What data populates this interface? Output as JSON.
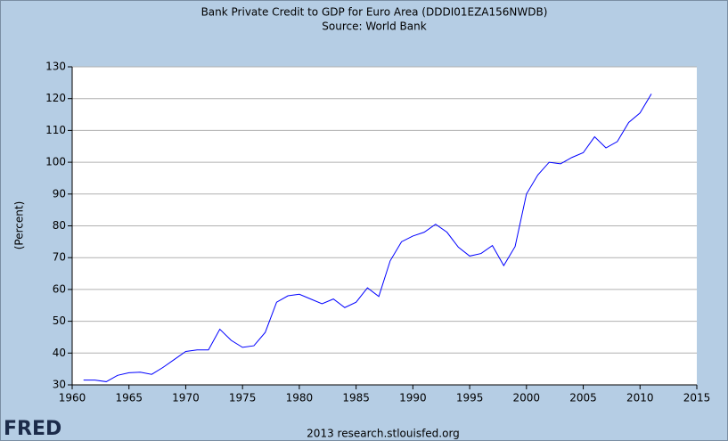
{
  "chart_data": {
    "type": "line",
    "title": "Bank Private Credit to GDP for Euro Area (DDDI01EZA156NWDB)",
    "subtitle": "Source: World Bank",
    "ylabel": "(Percent)",
    "footer": "2013 research.stlouisfed.org",
    "logo": "FRED",
    "x": [
      1961,
      1962,
      1963,
      1964,
      1965,
      1966,
      1967,
      1968,
      1969,
      1970,
      1971,
      1972,
      1973,
      1974,
      1975,
      1976,
      1977,
      1978,
      1979,
      1980,
      1981,
      1982,
      1983,
      1984,
      1985,
      1986,
      1987,
      1988,
      1989,
      1990,
      1991,
      1992,
      1993,
      1994,
      1995,
      1996,
      1997,
      1998,
      1999,
      2000,
      2001,
      2002,
      2003,
      2004,
      2005,
      2006,
      2007,
      2008,
      2009,
      2010,
      2011
    ],
    "series": [
      {
        "name": "Bank Private Credit to GDP",
        "color": "#0000ff",
        "values": [
          31.5,
          31.5,
          31.0,
          33.0,
          33.8,
          34.0,
          33.3,
          35.5,
          38.0,
          40.5,
          41.0,
          41.0,
          47.5,
          44.0,
          41.8,
          42.3,
          46.5,
          56.0,
          58.0,
          58.5,
          57.0,
          55.5,
          57.0,
          54.3,
          56.0,
          60.5,
          57.8,
          69.0,
          75.0,
          76.8,
          78.0,
          80.5,
          78.0,
          73.3,
          70.5,
          71.3,
          73.8,
          67.5,
          73.5,
          90.0,
          96.0,
          100.0,
          99.5,
          101.5,
          103.0,
          108.0,
          104.5,
          106.5,
          112.5,
          115.5,
          121.5
        ]
      }
    ],
    "xlim": [
      1960,
      2015
    ],
    "xticks": [
      1960,
      1965,
      1970,
      1975,
      1980,
      1985,
      1990,
      1995,
      2000,
      2005,
      2010,
      2015
    ],
    "ylim": [
      30,
      130
    ],
    "yticks": [
      30,
      40,
      50,
      60,
      70,
      80,
      90,
      100,
      110,
      120,
      130
    ],
    "grid": true
  }
}
